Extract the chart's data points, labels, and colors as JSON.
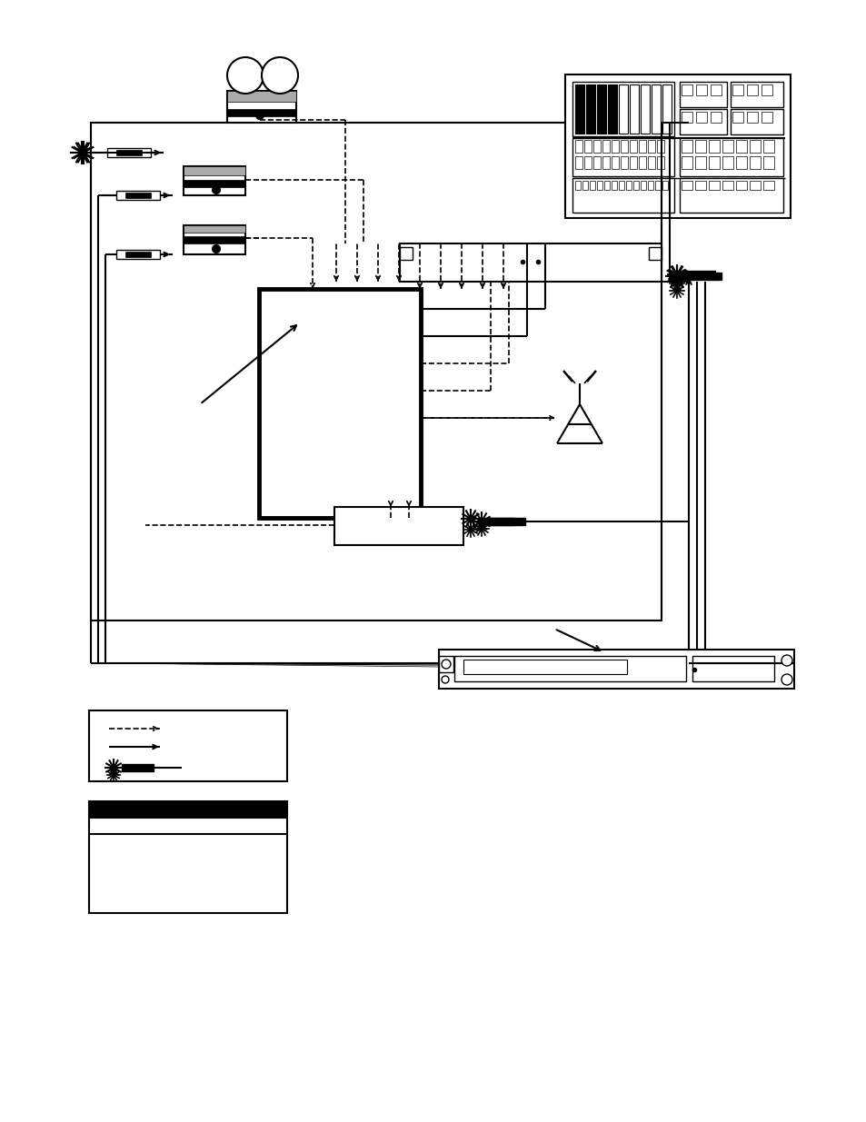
{
  "bg_color": "#ffffff",
  "fig_width": 9.54,
  "fig_height": 12.35,
  "dpi": 100
}
